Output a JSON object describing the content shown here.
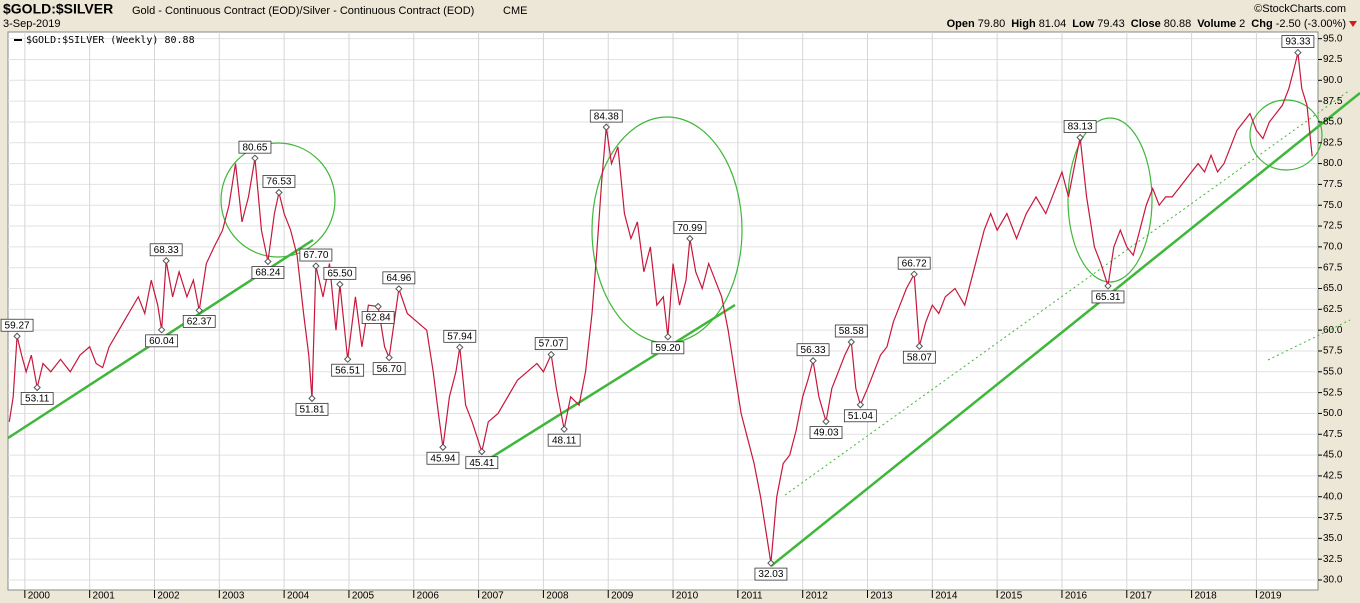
{
  "header": {
    "symbol": "$GOLD:$SILVER",
    "description": "Gold - Continuous Contract (EOD)/Silver - Continuous Contract (EOD)",
    "exchange": "CME",
    "date": "3-Sep-2019",
    "source": "©StockCharts.com",
    "quote": [
      {
        "label": "Open",
        "value": "79.80"
      },
      {
        "label": "High",
        "value": "81.04"
      },
      {
        "label": "Low",
        "value": "79.43"
      },
      {
        "label": "Close",
        "value": "80.88"
      },
      {
        "label": "Volume",
        "value": "2"
      },
      {
        "label": "Chg",
        "value": "-2.50 (-3.00%)"
      }
    ]
  },
  "chart_data": {
    "type": "line",
    "legend": "top-left",
    "grid": true,
    "last_value": 80.88,
    "xlim": [
      1999.74,
      2019.95
    ],
    "xticks": [
      2000,
      2001,
      2002,
      2003,
      2004,
      2005,
      2006,
      2007,
      2008,
      2009,
      2010,
      2011,
      2012,
      2013,
      2014,
      2015,
      2016,
      2017,
      2018,
      2019
    ],
    "ylim": [
      28.8,
      95.8
    ],
    "yticks": [
      {
        "value": 30,
        "label": "30.0"
      },
      {
        "value": 32.5,
        "label": "32.5"
      },
      {
        "value": 35,
        "label": "35.0"
      },
      {
        "value": 37.5,
        "label": "37.5"
      },
      {
        "value": 40,
        "label": "40.0"
      },
      {
        "value": 42.5,
        "label": "42.5"
      },
      {
        "value": 45,
        "label": "45.0"
      },
      {
        "value": 47.5,
        "label": "47.5"
      },
      {
        "value": 50,
        "label": "50.0"
      },
      {
        "value": 52.5,
        "label": "52.5"
      },
      {
        "value": 55,
        "label": "55.0"
      },
      {
        "value": 57.5,
        "label": "57.5"
      },
      {
        "value": 60,
        "label": "60.0"
      },
      {
        "value": 62.5,
        "label": "62.5"
      },
      {
        "value": 65,
        "label": "65.0"
      },
      {
        "value": 67.5,
        "label": "67.5"
      },
      {
        "value": 70,
        "label": "70.0"
      },
      {
        "value": 72.5,
        "label": "72.5"
      },
      {
        "value": 75,
        "label": "75.0"
      },
      {
        "value": 77.5,
        "label": "77.5"
      },
      {
        "value": 80,
        "label": "80.0"
      },
      {
        "value": 82.5,
        "label": "82.5"
      },
      {
        "value": 85,
        "label": "85.0"
      },
      {
        "value": 87.5,
        "label": "87.5"
      },
      {
        "value": 90,
        "label": "90.0"
      },
      {
        "value": 92.5,
        "label": "92.5"
      },
      {
        "value": 95,
        "label": "95.0"
      }
    ],
    "x": [
      1999.76,
      1999.82,
      1999.88,
      1999.95,
      2000.02,
      2000.1,
      2000.19,
      2000.28,
      2000.4,
      2000.55,
      2000.7,
      2000.85,
      2001.0,
      2001.1,
      2001.2,
      2001.3,
      2001.45,
      2001.6,
      2001.75,
      2001.85,
      2001.95,
      2002.05,
      2002.11,
      2002.18,
      2002.28,
      2002.38,
      2002.5,
      2002.6,
      2002.69,
      2002.8,
      2002.92,
      2003.05,
      2003.15,
      2003.25,
      2003.35,
      2003.45,
      2003.55,
      2003.65,
      2003.75,
      2003.85,
      2003.92,
      2004.0,
      2004.1,
      2004.2,
      2004.3,
      2004.38,
      2004.43,
      2004.49,
      2004.6,
      2004.7,
      2004.8,
      2004.86,
      2004.98,
      2005.1,
      2005.2,
      2005.3,
      2005.45,
      2005.55,
      2005.62,
      2005.77,
      2005.9,
      2006.05,
      2006.2,
      2006.3,
      2006.38,
      2006.45,
      2006.55,
      2006.65,
      2006.71,
      2006.8,
      2006.9,
      2007.05,
      2007.15,
      2007.3,
      2007.45,
      2007.6,
      2007.75,
      2007.9,
      2008.0,
      2008.12,
      2008.2,
      2008.32,
      2008.42,
      2008.55,
      2008.65,
      2008.75,
      2008.82,
      2008.9,
      2008.97,
      2009.05,
      2009.15,
      2009.25,
      2009.35,
      2009.45,
      2009.55,
      2009.65,
      2009.75,
      2009.85,
      2009.92,
      2010.0,
      2010.1,
      2010.2,
      2010.26,
      2010.35,
      2010.45,
      2010.55,
      2010.65,
      2010.75,
      2010.85,
      2010.95,
      2011.05,
      2011.15,
      2011.25,
      2011.35,
      2011.45,
      2011.51,
      2011.6,
      2011.7,
      2011.8,
      2011.9,
      2012.0,
      2012.08,
      2012.16,
      2012.25,
      2012.36,
      2012.45,
      2012.55,
      2012.65,
      2012.75,
      2012.82,
      2012.89,
      2013.0,
      2013.1,
      2013.2,
      2013.3,
      2013.4,
      2013.5,
      2013.6,
      2013.72,
      2013.8,
      2013.9,
      2014.0,
      2014.1,
      2014.2,
      2014.35,
      2014.5,
      2014.6,
      2014.7,
      2014.8,
      2014.9,
      2015.0,
      2015.15,
      2015.3,
      2015.45,
      2015.6,
      2015.75,
      2015.9,
      2016.0,
      2016.1,
      2016.2,
      2016.28,
      2016.38,
      2016.5,
      2016.6,
      2016.71,
      2016.8,
      2016.9,
      2017.0,
      2017.1,
      2017.2,
      2017.3,
      2017.4,
      2017.5,
      2017.6,
      2017.7,
      2017.8,
      2017.9,
      2018.0,
      2018.1,
      2018.2,
      2018.3,
      2018.4,
      2018.5,
      2018.6,
      2018.7,
      2018.8,
      2018.9,
      2019.0,
      2019.1,
      2019.2,
      2019.3,
      2019.4,
      2019.5,
      2019.6,
      2019.64,
      2019.7,
      2019.78,
      2019.86
    ],
    "series": [
      {
        "name": "$GOLD:$SILVER (Weekly)",
        "color": "#c8173c",
        "values": [
          49,
          52,
          59.27,
          57,
          55,
          57,
          53.11,
          56,
          55,
          56.5,
          55,
          57,
          58,
          56,
          55.5,
          58,
          60,
          62,
          64,
          62,
          66,
          63,
          60.04,
          68.33,
          64,
          67,
          64,
          66,
          62.37,
          68,
          70,
          72,
          75,
          80,
          73,
          76,
          80.65,
          72,
          68.24,
          74,
          76.53,
          74,
          72,
          69,
          62,
          57,
          51.81,
          67.7,
          64,
          68,
          60,
          65.5,
          56.51,
          64,
          58,
          63,
          62.84,
          58,
          56.7,
          64.96,
          62,
          61,
          60,
          55,
          50,
          45.94,
          52,
          55,
          57.94,
          51,
          49,
          45.41,
          49,
          50,
          52,
          54,
          55,
          56,
          55,
          57.07,
          53,
          48.11,
          52,
          51,
          55,
          62,
          69,
          78,
          84.38,
          80,
          82,
          74,
          71,
          73,
          67,
          70,
          63,
          64,
          59.2,
          68,
          63,
          66,
          70.99,
          67,
          65,
          68,
          66,
          64,
          60,
          55,
          50,
          47,
          44,
          40,
          35,
          32.03,
          40,
          44,
          45,
          48,
          52,
          54,
          56.33,
          52,
          49.03,
          53,
          55,
          57,
          58.58,
          53,
          51.04,
          53,
          55,
          57,
          58,
          61,
          63,
          65,
          66.72,
          58.07,
          61,
          63,
          62,
          64,
          65,
          63,
          66,
          69,
          72,
          74,
          72,
          74,
          71,
          74,
          76,
          74,
          77,
          79,
          76,
          80,
          83.13,
          76,
          70,
          68,
          65.31,
          70,
          72,
          70,
          69,
          72,
          75,
          77,
          75,
          76,
          76,
          77,
          78,
          79,
          80,
          79,
          81,
          79,
          80,
          82,
          84,
          85,
          86,
          84,
          83,
          85,
          86,
          87,
          89,
          92,
          93.33,
          89,
          87,
          80.88
        ]
      }
    ],
    "annotations": {
      "x": [
        1999.88,
        2000.19,
        2002.11,
        2002.18,
        2002.69,
        2003.55,
        2003.75,
        2003.92,
        2004.43,
        2004.49,
        2004.86,
        2004.98,
        2005.45,
        2005.62,
        2005.77,
        2006.45,
        2006.71,
        2007.05,
        2008.12,
        2008.32,
        2008.97,
        2009.92,
        2010.26,
        2011.51,
        2012.16,
        2012.36,
        2012.75,
        2012.89,
        2013.72,
        2013.8,
        2016.28,
        2016.71,
        2019.64
      ],
      "values": [
        59.27,
        53.11,
        60.04,
        68.33,
        62.37,
        80.65,
        68.24,
        76.53,
        51.81,
        67.7,
        65.5,
        56.51,
        62.84,
        56.7,
        64.96,
        45.94,
        57.94,
        45.41,
        57.07,
        48.11,
        84.38,
        59.2,
        70.99,
        32.03,
        56.33,
        49.03,
        58.58,
        51.04,
        66.72,
        58.07,
        83.13,
        65.31,
        93.33
      ],
      "value_labels": [
        "59.27",
        "53.11",
        "60.04",
        "68.33",
        "62.37",
        "80.65",
        "68.24",
        "76.53",
        "51.81",
        "67.70",
        "65.50",
        "56.51",
        "62.84",
        "56.70",
        "64.96",
        "45.94",
        "57.94",
        "45.41",
        "57.07",
        "48.11",
        "84.38",
        "59.20",
        "70.99",
        "32.03",
        "56.33",
        "49.03",
        "58.58",
        "51.04",
        "66.72",
        "58.07",
        "83.13",
        "65.31",
        "93.33"
      ]
    }
  }
}
